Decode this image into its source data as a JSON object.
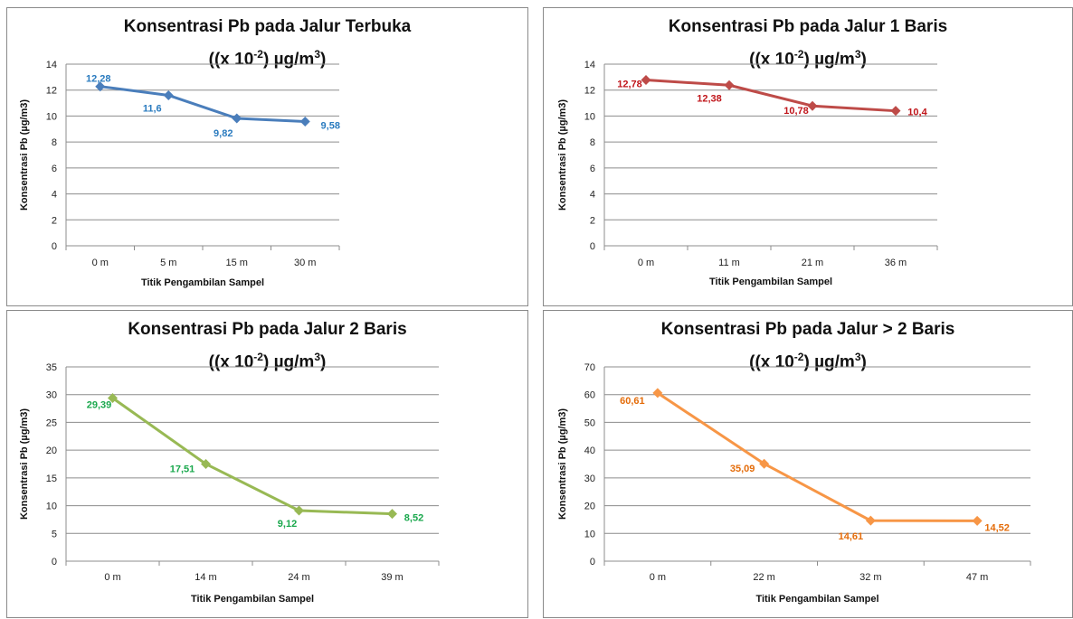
{
  "chart_data": [
    {
      "type": "line",
      "title_line1": "Konsentrasi Pb pada Jalur Terbuka",
      "title_line2_pre": "((x 10",
      "title_line2_exp": "-2",
      "title_line2_mid": ") µg/m",
      "title_line2_sup": "3",
      "title_line2_post": ")",
      "xlabel": "Titik Pengambilan Sampel",
      "ylabel": "Konsentrasi Pb (µg/m3)",
      "categories": [
        "0 m",
        "5 m",
        "15 m",
        "30 m"
      ],
      "series": [
        {
          "values": [
            12.28,
            11.6,
            9.82,
            9.58
          ]
        }
      ],
      "value_labels": [
        "12,28",
        "11,6",
        "9,82",
        "9,58"
      ],
      "ylim": [
        0,
        14
      ],
      "yticks": [
        0,
        2,
        4,
        6,
        8,
        10,
        12,
        14
      ],
      "color": "#4a7ebb",
      "label_color": "#2a7bbf",
      "grid": true
    },
    {
      "type": "line",
      "title_line1": "Konsentrasi Pb pada Jalur 1 Baris",
      "title_line2_pre": "((x 10",
      "title_line2_exp": "-2",
      "title_line2_mid": ") µg/m",
      "title_line2_sup": "3",
      "title_line2_post": ")",
      "xlabel": "Titik Pengambilan Sampel",
      "ylabel": "Konsentrasi Pb (µg/m3)",
      "categories": [
        "0 m",
        "11 m",
        "21 m",
        "36 m"
      ],
      "series": [
        {
          "values": [
            12.78,
            12.38,
            10.78,
            10.4
          ]
        }
      ],
      "value_labels": [
        "12,78",
        "12,38",
        "10,78",
        "10,4"
      ],
      "ylim": [
        0,
        14
      ],
      "yticks": [
        0,
        2,
        4,
        6,
        8,
        10,
        12,
        14
      ],
      "color": "#be4b48",
      "label_color": "#c0161b",
      "grid": true
    },
    {
      "type": "line",
      "title_line1": "Konsentrasi Pb pada Jalur 2 Baris",
      "title_line2_pre": "((x 10",
      "title_line2_exp": "-2",
      "title_line2_mid": ") µg/m",
      "title_line2_sup": "3",
      "title_line2_post": ")",
      "xlabel": "Titik Pengambilan Sampel",
      "ylabel": "Konsentrasi Pb (µg/m3)",
      "categories": [
        "0 m",
        "14 m",
        "24 m",
        "39 m"
      ],
      "series": [
        {
          "values": [
            29.39,
            17.51,
            9.12,
            8.52
          ]
        }
      ],
      "value_labels": [
        "29,39",
        "17,51",
        "9,12",
        "8,52"
      ],
      "ylim": [
        0,
        35
      ],
      "yticks": [
        0,
        5,
        10,
        15,
        20,
        25,
        30,
        35
      ],
      "color": "#98b954",
      "label_color": "#1aa84d",
      "grid": true
    },
    {
      "type": "line",
      "title_line1": "Konsentrasi Pb pada Jalur > 2 Baris",
      "title_line2_pre": "((x 10",
      "title_line2_exp": "-2",
      "title_line2_mid": ") µg/m",
      "title_line2_sup": "3",
      "title_line2_post": ")",
      "xlabel": "Titik Pengambilan Sampel",
      "ylabel": "Konsentrasi Pb (µg/m3)",
      "categories": [
        "0 m",
        "22 m",
        "32 m",
        "47 m"
      ],
      "series": [
        {
          "values": [
            60.61,
            35.09,
            14.61,
            14.52
          ]
        }
      ],
      "value_labels": [
        "60,61",
        "35,09",
        "14,61",
        "14,52"
      ],
      "ylim": [
        0,
        70
      ],
      "yticks": [
        0,
        10,
        20,
        30,
        40,
        50,
        60,
        70
      ],
      "color": "#f79646",
      "label_color": "#e46c0a",
      "grid": true
    }
  ]
}
